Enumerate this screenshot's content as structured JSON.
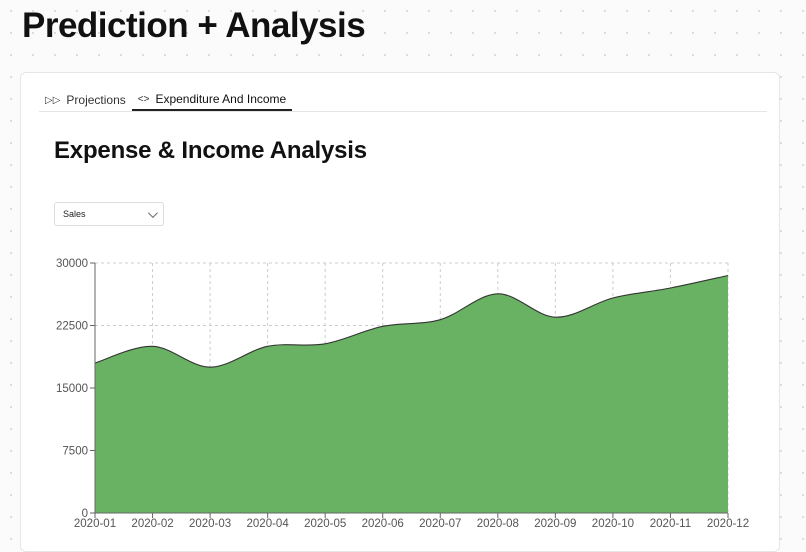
{
  "page": {
    "title": "Prediction + Analysis"
  },
  "tabs": [
    {
      "label": "Projections",
      "icon": "fast-forward-icon",
      "active": false
    },
    {
      "label": "Expenditure And Income",
      "icon": "code-brackets-icon",
      "active": true
    }
  ],
  "section": {
    "title": "Expense & Income Analysis"
  },
  "dropdown": {
    "selected": "Sales"
  },
  "colors": {
    "area_fill": "#6ab263",
    "area_stroke": "#333333",
    "grid": "#cccccc"
  },
  "chart_data": {
    "type": "area",
    "x": [
      "2020-01",
      "2020-02",
      "2020-03",
      "2020-04",
      "2020-05",
      "2020-06",
      "2020-07",
      "2020-08",
      "2020-09",
      "2020-10",
      "2020-11",
      "2020-12"
    ],
    "series": [
      {
        "values": [
          18000,
          20000,
          17500,
          20000,
          20300,
          22400,
          23200,
          26300,
          23500,
          25800,
          27000,
          28500
        ]
      }
    ],
    "ylim": [
      0,
      30000
    ],
    "yticks": [
      0,
      7500,
      15000,
      22500,
      30000
    ],
    "grid": true
  }
}
